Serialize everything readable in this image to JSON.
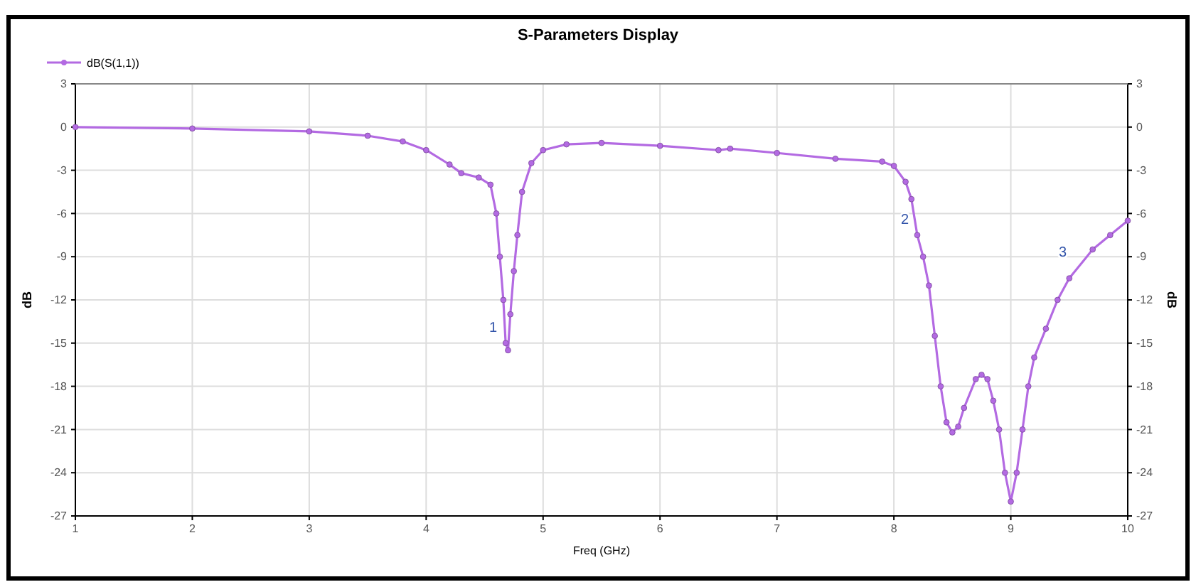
{
  "chart_data": {
    "type": "line",
    "title": "S-Parameters Display",
    "xlabel": "Freq (GHz)",
    "ylabel": "dB",
    "y2label": "dB",
    "xlim": [
      1,
      10
    ],
    "xticks": [
      1,
      2,
      3,
      4,
      5,
      6,
      7,
      8,
      9,
      10
    ],
    "ylim": [
      -27,
      3
    ],
    "yticks": [
      3,
      0,
      -3,
      -6,
      -9,
      -12,
      -15,
      -18,
      -21,
      -24,
      -27
    ],
    "y2lim": [
      -27,
      3
    ],
    "y2ticks": [
      3,
      0,
      -3,
      -6,
      -9,
      -12,
      -15,
      -18,
      -21,
      -24,
      -27
    ],
    "grid": true,
    "legend": "top left",
    "marker": "circle",
    "line_style": "solid",
    "series": [
      {
        "name": "dB(S(1,1))",
        "color": "#b36ae2",
        "x": [
          1,
          2,
          3,
          3.5,
          3.8,
          4.0,
          4.2,
          4.3,
          4.45,
          4.55,
          4.6,
          4.63,
          4.66,
          4.68,
          4.7,
          4.72,
          4.75,
          4.78,
          4.82,
          4.9,
          5.0,
          5.2,
          5.5,
          6.0,
          6.5,
          6.6,
          7.0,
          7.5,
          7.9,
          8.0,
          8.1,
          8.15,
          8.2,
          8.25,
          8.3,
          8.35,
          8.4,
          8.45,
          8.5,
          8.55,
          8.6,
          8.7,
          8.75,
          8.8,
          8.85,
          8.9,
          8.95,
          9.0,
          9.05,
          9.1,
          9.15,
          9.2,
          9.3,
          9.4,
          9.5,
          9.7,
          9.85,
          10
        ],
        "values": [
          0,
          -0.1,
          -0.3,
          -0.6,
          -1.0,
          -1.6,
          -2.6,
          -3.2,
          -3.5,
          -4.0,
          -6,
          -9,
          -12,
          -15,
          -15.5,
          -13,
          -10,
          -7.5,
          -4.5,
          -2.5,
          -1.6,
          -1.2,
          -1.1,
          -1.3,
          -1.6,
          -1.5,
          -1.8,
          -2.2,
          -2.4,
          -2.7,
          -3.8,
          -5,
          -7.5,
          -9,
          -11,
          -14.5,
          -18,
          -20.5,
          -21.2,
          -20.8,
          -19.5,
          -17.5,
          -17.2,
          -17.5,
          -19,
          -21,
          -24,
          -26,
          -24,
          -21,
          -18,
          -16,
          -14,
          -12,
          -10.5,
          -8.5,
          -7.5,
          -6.5
        ]
      }
    ],
    "annotations": [
      {
        "text": "1",
        "x": 4.68,
        "y": -15
      },
      {
        "text": "2",
        "x": 8.2,
        "y": -7.5
      },
      {
        "text": "3",
        "x": 9.55,
        "y": -9.8
      }
    ]
  }
}
